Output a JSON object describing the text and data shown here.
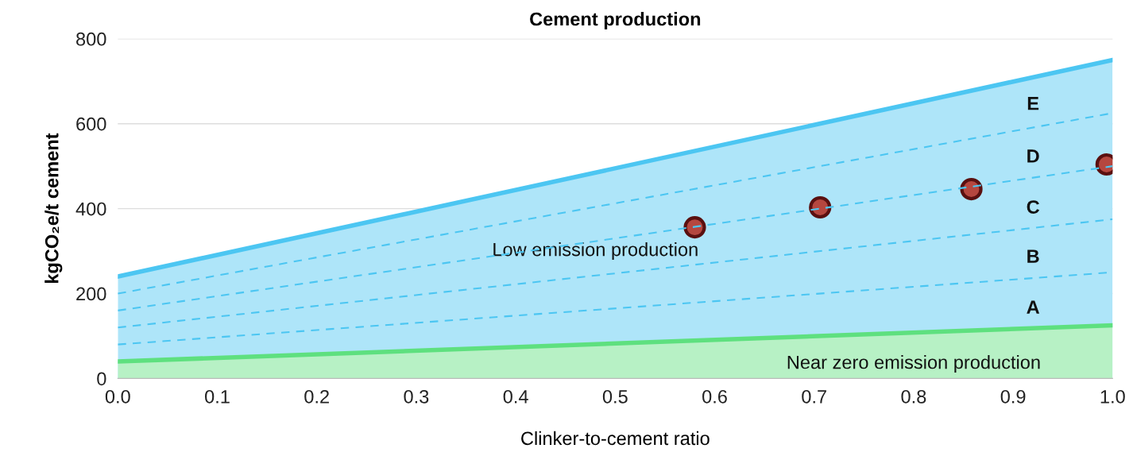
{
  "chart_data": {
    "type": "line",
    "title": "Cement production",
    "xlabel": "Clinker-to-cement ratio",
    "ylabel": "kgCO₂e/t cement",
    "xlim": [
      0,
      1
    ],
    "ylim": [
      0,
      800
    ],
    "xticks": [
      {
        "value": 0,
        "label": "0.0"
      },
      0.1,
      0.2,
      0.3,
      0.4,
      0.5,
      0.6,
      0.7,
      0.8,
      0.9,
      {
        "value": 1,
        "label": "1.0"
      }
    ],
    "yticks": [
      0,
      200,
      400,
      600,
      800
    ],
    "grid": "y",
    "legend": false,
    "series": [
      {
        "type": "area",
        "x": [
          0,
          1
        ],
        "values": [
          240,
          750
        ],
        "color": "#4cc6f2"
      },
      {
        "type": "area",
        "x": [
          0,
          1
        ],
        "values": [
          40,
          125
        ],
        "color": "#5ee07f"
      },
      {
        "type": "line",
        "x": [
          0,
          1
        ],
        "values": [
          80,
          250
        ],
        "color": "#4cc6f2",
        "line_style": "dashed"
      },
      {
        "type": "line",
        "x": [
          0,
          1
        ],
        "values": [
          120,
          375
        ],
        "color": "#4cc6f2",
        "line_style": "dashed"
      },
      {
        "type": "line",
        "x": [
          0,
          1
        ],
        "values": [
          160,
          500
        ],
        "color": "#4cc6f2",
        "line_style": "dashed"
      },
      {
        "type": "line",
        "x": [
          0,
          1
        ],
        "values": [
          200,
          625
        ],
        "color": "#4cc6f2",
        "line_style": "dashed"
      },
      {
        "type": "scatter",
        "x": [
          0.58,
          0.706,
          0.858,
          0.994
        ],
        "values": [
          356,
          403,
          446,
          504
        ],
        "color": "#b5473f",
        "marker": "circle"
      }
    ],
    "annotations": [
      "A",
      "B",
      "C",
      "D",
      "E",
      "Low emission production",
      "Near zero emission production"
    ]
  }
}
